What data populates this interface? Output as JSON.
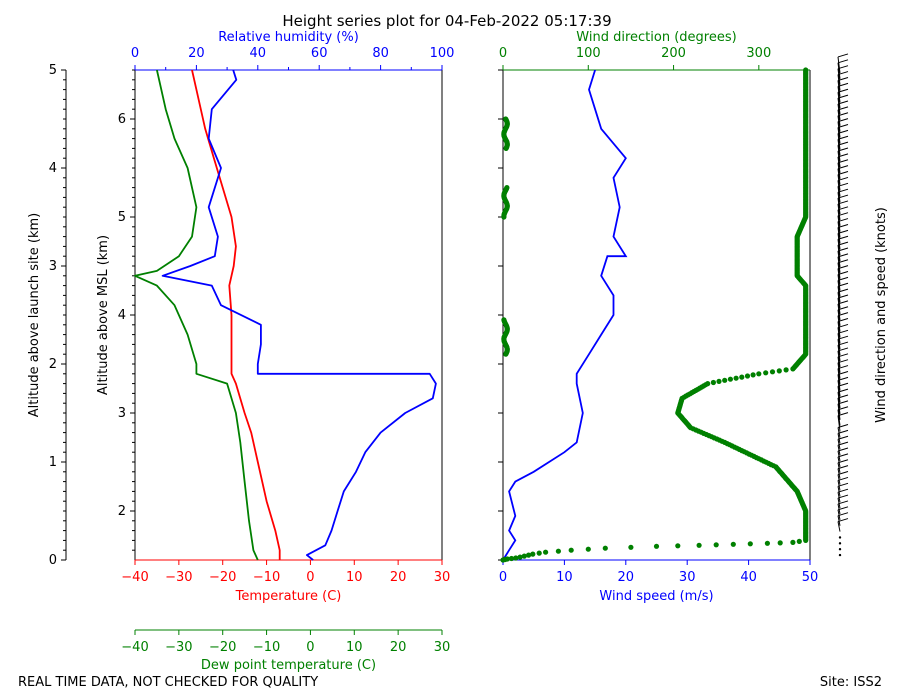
{
  "chart_data": {
    "type": "line",
    "title": "Height series plot for 04-Feb-2022 05:17:39",
    "footer_left": "REAL TIME DATA, NOT CHECKED FOR QUALITY",
    "footer_right": "Site: ISS2",
    "left_panel": {
      "ylabel_outer": "Altitude above launch site (km)",
      "ylabel_inner": "Altitude above MSL (km)",
      "yticks_launch": [
        "0",
        "1",
        "2",
        "3",
        "4",
        "5"
      ],
      "yticks_msl": [
        "2",
        "3",
        "4",
        "5",
        "6"
      ],
      "rh_axis": {
        "label": "Relative humidity (%)",
        "ticks": [
          "0",
          "20",
          "40",
          "60",
          "80",
          "100"
        ]
      },
      "temp_axis": {
        "label": "Temperature (C)",
        "ticks": [
          "−40",
          "−30",
          "−20",
          "−10",
          "0",
          "10",
          "20",
          "30"
        ]
      },
      "dew_axis": {
        "label": "Dew point temperature (C)",
        "ticks": [
          "−40",
          "−30",
          "−20",
          "−10",
          "0",
          "10",
          "20",
          "30"
        ]
      },
      "series": [
        {
          "name": "Temperature",
          "color": "#ff0000",
          "points": [
            [
              -7,
              0
            ],
            [
              -7,
              0.1
            ],
            [
              -8,
              0.3
            ],
            [
              -10,
              0.6
            ],
            [
              -11,
              0.8
            ],
            [
              -12,
              1.0
            ],
            [
              -13.5,
              1.3
            ],
            [
              -15,
              1.5
            ],
            [
              -17,
              1.8
            ],
            [
              -18,
              1.9
            ],
            [
              -18,
              2.0
            ],
            [
              -18,
              2.5
            ],
            [
              -18.5,
              2.8
            ],
            [
              -17.5,
              3.0
            ],
            [
              -17,
              3.2
            ],
            [
              -18,
              3.5
            ],
            [
              -20,
              3.8
            ],
            [
              -22,
              4.1
            ],
            [
              -24,
              4.4
            ],
            [
              -25,
              4.6
            ],
            [
              -26,
              4.8
            ],
            [
              -27,
              5.0
            ]
          ]
        },
        {
          "name": "Dew point",
          "color": "#008000",
          "points": [
            [
              -12,
              0
            ],
            [
              -13,
              0.1
            ],
            [
              -14,
              0.4
            ],
            [
              -15,
              0.8
            ],
            [
              -16,
              1.2
            ],
            [
              -17,
              1.5
            ],
            [
              -19,
              1.8
            ],
            [
              -26,
              1.9
            ],
            [
              -26,
              2.0
            ],
            [
              -28,
              2.3
            ],
            [
              -31,
              2.6
            ],
            [
              -35,
              2.8
            ],
            [
              -40,
              2.9
            ],
            [
              -35,
              2.95
            ],
            [
              -30,
              3.1
            ],
            [
              -27,
              3.3
            ],
            [
              -26,
              3.6
            ],
            [
              -28,
              4.0
            ],
            [
              -31,
              4.3
            ],
            [
              -33,
              4.6
            ],
            [
              -34,
              4.8
            ],
            [
              -35,
              5.0
            ]
          ]
        },
        {
          "name": "Relative humidity",
          "color": "#0000ff",
          "points": [
            [
              58,
              0
            ],
            [
              56,
              0.05
            ],
            [
              62,
              0.15
            ],
            [
              64,
              0.3
            ],
            [
              66,
              0.5
            ],
            [
              68,
              0.7
            ],
            [
              72,
              0.9
            ],
            [
              75,
              1.1
            ],
            [
              80,
              1.3
            ],
            [
              88,
              1.5
            ],
            [
              97,
              1.65
            ],
            [
              98,
              1.8
            ],
            [
              96,
              1.9
            ],
            [
              40,
              1.9
            ],
            [
              40,
              2.0
            ],
            [
              41,
              2.2
            ],
            [
              41,
              2.4
            ],
            [
              28,
              2.6
            ],
            [
              25,
              2.8
            ],
            [
              9,
              2.9
            ],
            [
              18,
              3.0
            ],
            [
              26,
              3.1
            ],
            [
              27,
              3.3
            ],
            [
              24,
              3.6
            ],
            [
              28,
              4.0
            ],
            [
              24,
              4.3
            ],
            [
              25,
              4.6
            ],
            [
              33,
              4.9
            ],
            [
              32,
              5.0
            ]
          ]
        }
      ]
    },
    "right_panel": {
      "xlabel": "Wind speed (m/s)",
      "x_ticks": [
        "0",
        "10",
        "20",
        "30",
        "40",
        "50"
      ],
      "top_label": "Wind direction (degrees)",
      "top_ticks": [
        "0",
        "100",
        "200",
        "300"
      ],
      "right_label": "Wind direction and speed (knots)",
      "series": [
        {
          "name": "Wind speed",
          "color": "#0000ff",
          "points": [
            [
              0,
              0
            ],
            [
              1,
              0.1
            ],
            [
              2,
              0.2
            ],
            [
              1,
              0.3
            ],
            [
              2,
              0.45
            ],
            [
              1,
              0.7
            ],
            [
              2,
              0.8
            ],
            [
              5,
              0.9
            ],
            [
              10,
              1.1
            ],
            [
              12,
              1.2
            ],
            [
              13,
              1.5
            ],
            [
              12,
              1.8
            ],
            [
              12,
              1.9
            ],
            [
              14,
              2.1
            ],
            [
              16,
              2.3
            ],
            [
              18,
              2.5
            ],
            [
              18,
              2.7
            ],
            [
              16,
              2.9
            ],
            [
              17,
              3.1
            ],
            [
              20,
              3.1
            ],
            [
              18,
              3.3
            ],
            [
              19,
              3.6
            ],
            [
              18,
              3.9
            ],
            [
              20,
              4.1
            ],
            [
              16,
              4.4
            ],
            [
              15,
              4.6
            ],
            [
              14,
              4.8
            ],
            [
              15,
              5.0
            ]
          ]
        },
        {
          "name": "Wind direction",
          "color": "#008000",
          "points": [
            [
              0,
              0
            ],
            [
              5,
              0.01
            ],
            [
              15,
              0.02
            ],
            [
              25,
              0.04
            ],
            [
              35,
              0.06
            ],
            [
              50,
              0.08
            ],
            [
              80,
              0.1
            ],
            [
              120,
              0.12
            ],
            [
              180,
              0.14
            ],
            [
              230,
              0.15
            ],
            [
              270,
              0.16
            ],
            [
              310,
              0.17
            ],
            [
              340,
              0.18
            ],
            [
              355,
              0.2
            ],
            [
              355,
              0.5
            ],
            [
              345,
              0.7
            ],
            [
              320,
              0.95
            ],
            [
              260,
              1.2
            ],
            [
              220,
              1.35
            ],
            [
              205,
              1.5
            ],
            [
              210,
              1.65
            ],
            [
              240,
              1.8
            ],
            [
              300,
              1.9
            ],
            [
              340,
              1.95
            ],
            [
              355,
              2.1
            ],
            [
              355,
              2.8
            ],
            [
              345,
              2.9
            ],
            [
              345,
              3.3
            ],
            [
              355,
              3.5
            ],
            [
              355,
              5.0
            ]
          ]
        }
      ]
    }
  }
}
